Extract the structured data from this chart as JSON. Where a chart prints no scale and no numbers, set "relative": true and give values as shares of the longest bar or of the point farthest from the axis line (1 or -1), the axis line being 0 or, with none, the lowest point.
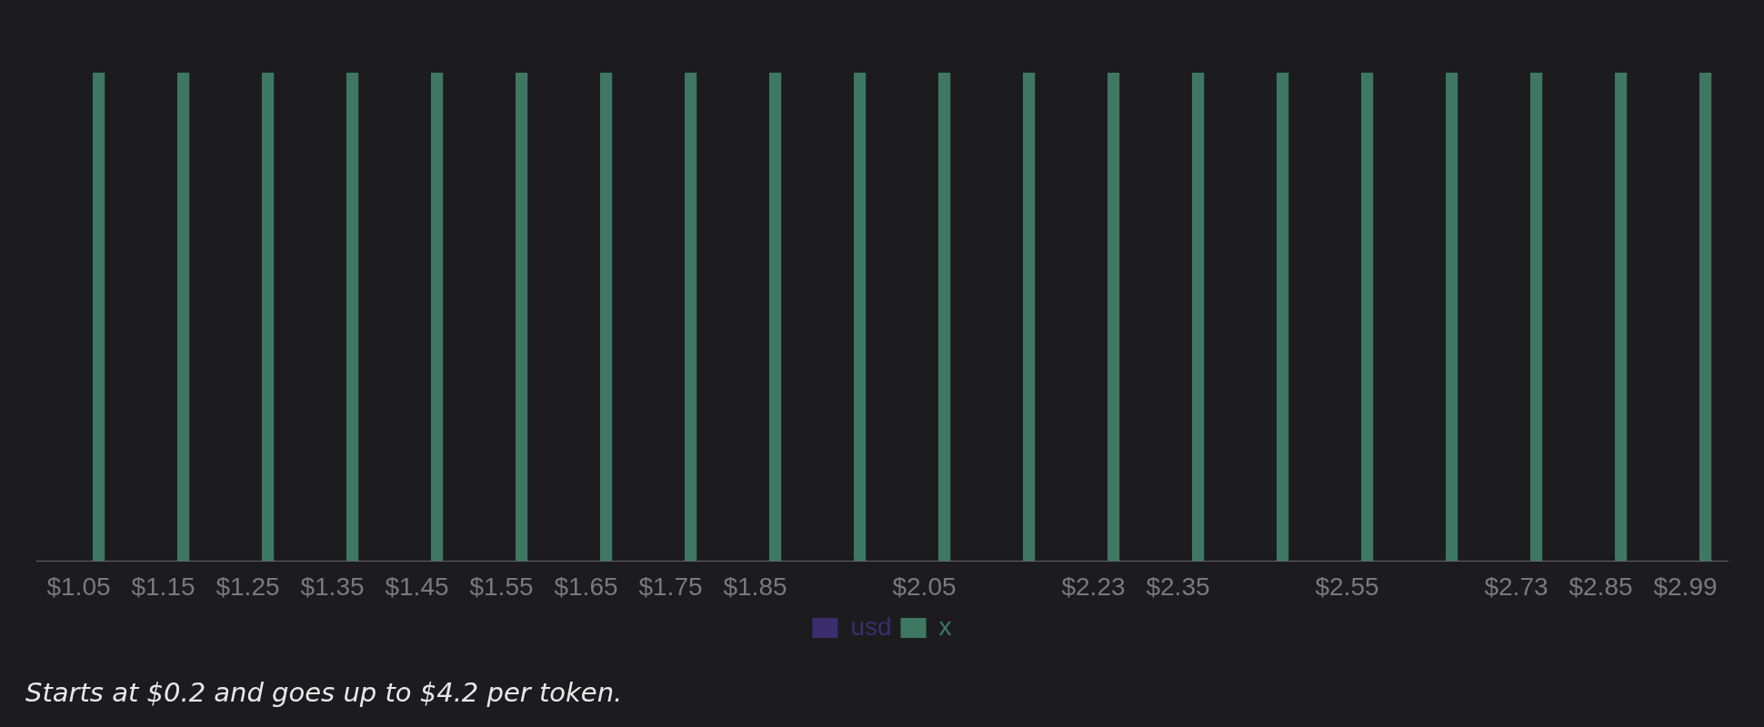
{
  "chart_data": {
    "type": "bar",
    "relative": true,
    "categories": [
      "$1.05",
      "$1.15",
      "$1.25",
      "$1.35",
      "$1.45",
      "$1.55",
      "$1.65",
      "$1.75",
      "$1.85",
      null,
      "$2.05",
      null,
      "$2.23",
      "$2.35",
      null,
      "$2.55",
      null,
      "$2.73",
      "$2.85",
      "$2.99"
    ],
    "series": [
      {
        "name": "usd",
        "color": "#3b2e6e",
        "values": [
          0,
          0,
          0,
          0,
          0,
          0,
          0,
          0,
          0,
          0,
          0,
          0,
          0,
          0,
          0,
          0,
          0,
          0,
          0,
          0
        ]
      },
      {
        "name": "x",
        "color": "#3e7862",
        "values": [
          1,
          1,
          1,
          1,
          1,
          1,
          1,
          1,
          1,
          1,
          1,
          1,
          1,
          1,
          1,
          1,
          1,
          1,
          1,
          1
        ]
      }
    ],
    "legend": "bottom",
    "grid": false,
    "annotations": [
      "Starts at $0.2 and goes up to $4.2 per token."
    ]
  }
}
